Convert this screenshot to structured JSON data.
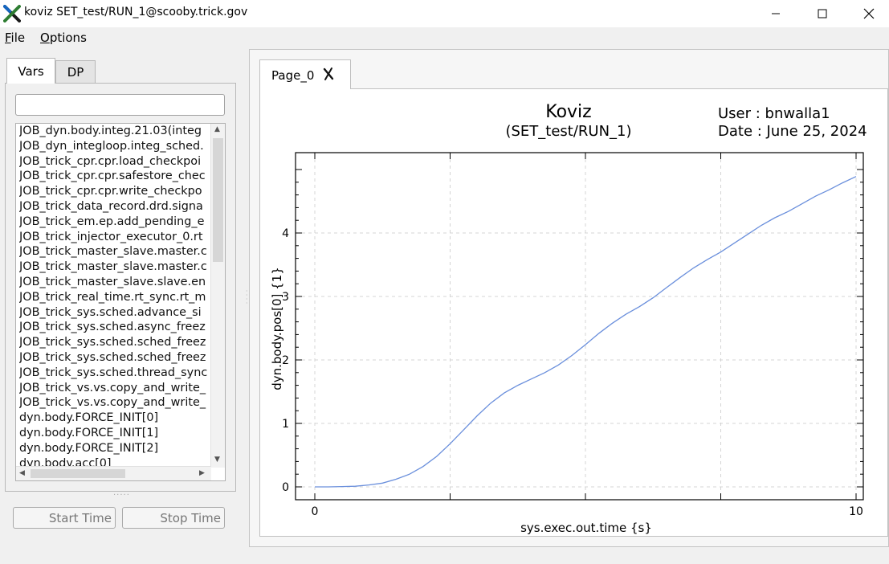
{
  "window": {
    "title": "koviz SET_test/RUN_1@scooby.trick.gov",
    "logo_icon": "x-logo-icon",
    "minimize_icon": "minimize-icon",
    "maximize_icon": "maximize-icon",
    "close_icon": "close-icon"
  },
  "menu": [
    {
      "label": "File",
      "mnemonic": "F",
      "rest": "ile"
    },
    {
      "label": "Options",
      "mnemonic": "O",
      "rest": "ptions"
    }
  ],
  "left": {
    "tabs": [
      "Vars",
      "DP"
    ],
    "active_tab": "Vars",
    "search_value": "",
    "vars": [
      "JOB_dyn.body.integ.21.03(integ",
      "JOB_dyn_integloop.integ_sched.",
      "JOB_trick_cpr.cpr.load_checkpoi",
      "JOB_trick_cpr.cpr.safestore_chec",
      "JOB_trick_cpr.cpr.write_checkpo",
      "JOB_trick_data_record.drd.signa",
      "JOB_trick_em.ep.add_pending_e",
      "JOB_trick_injector_executor_0.rt",
      "JOB_trick_master_slave.master.c",
      "JOB_trick_master_slave.master.c",
      "JOB_trick_master_slave.slave.en",
      "JOB_trick_real_time.rt_sync.rt_m",
      "JOB_trick_sys.sched.advance_si",
      "JOB_trick_sys.sched.async_freez",
      "JOB_trick_sys.sched.sched_freez",
      "JOB_trick_sys.sched.sched_freez",
      "JOB_trick_sys.sched.thread_sync",
      "JOB_trick_vs.vs.copy_and_write_",
      "JOB_trick_vs.vs.copy_and_write_",
      "dyn.body.FORCE_INIT[0]",
      "dyn.body.FORCE_INIT[1]",
      "dyn.body.FORCE_INIT[2]",
      "dyn.body.acc[0]"
    ],
    "start_time_placeholder": "Start Time",
    "stop_time_placeholder": "Stop Time"
  },
  "page_tab": {
    "label": "Page_0",
    "close_icon": "tab-close-icon"
  },
  "plot": {
    "title": "Koviz",
    "subtitle": "(SET_test/RUN_1)",
    "user": "User : bnwalla1",
    "date": "Date : June 25, 2024",
    "line_color": "#6a8fdc"
  },
  "chart_data": {
    "type": "line",
    "xlabel": "sys.exec.out.time {s}",
    "ylabel": "dyn.body.pos[0] {1}",
    "xlim": [
      0,
      10
    ],
    "ylim": [
      -0.2,
      5.3
    ],
    "x_tick_labels": [
      "0",
      "10"
    ],
    "y_tick_labels": [
      "0",
      "1",
      "2",
      "3",
      "4"
    ],
    "grid": true,
    "series": [
      {
        "x": [
          0,
          0.25,
          0.5,
          0.75,
          1.0,
          1.25,
          1.5,
          1.75,
          2.0,
          2.25,
          2.5,
          2.75,
          3.0,
          3.25,
          3.5,
          3.75,
          4.0,
          4.25,
          4.5,
          4.75,
          5.0,
          5.25,
          5.5,
          5.75,
          6.0,
          6.25,
          6.5,
          6.75,
          7.0,
          7.25,
          7.5,
          7.75,
          8.0,
          8.25,
          8.5,
          8.75,
          9.0,
          9.25,
          9.5,
          9.75,
          10.0
        ],
        "y": [
          0.0,
          0.0,
          0.005,
          0.01,
          0.03,
          0.06,
          0.12,
          0.2,
          0.32,
          0.48,
          0.68,
          0.9,
          1.12,
          1.32,
          1.48,
          1.6,
          1.7,
          1.8,
          1.92,
          2.07,
          2.24,
          2.42,
          2.58,
          2.72,
          2.84,
          2.98,
          3.14,
          3.3,
          3.45,
          3.58,
          3.7,
          3.84,
          3.98,
          4.12,
          4.24,
          4.34,
          4.46,
          4.58,
          4.68,
          4.79,
          4.89
        ]
      }
    ]
  }
}
